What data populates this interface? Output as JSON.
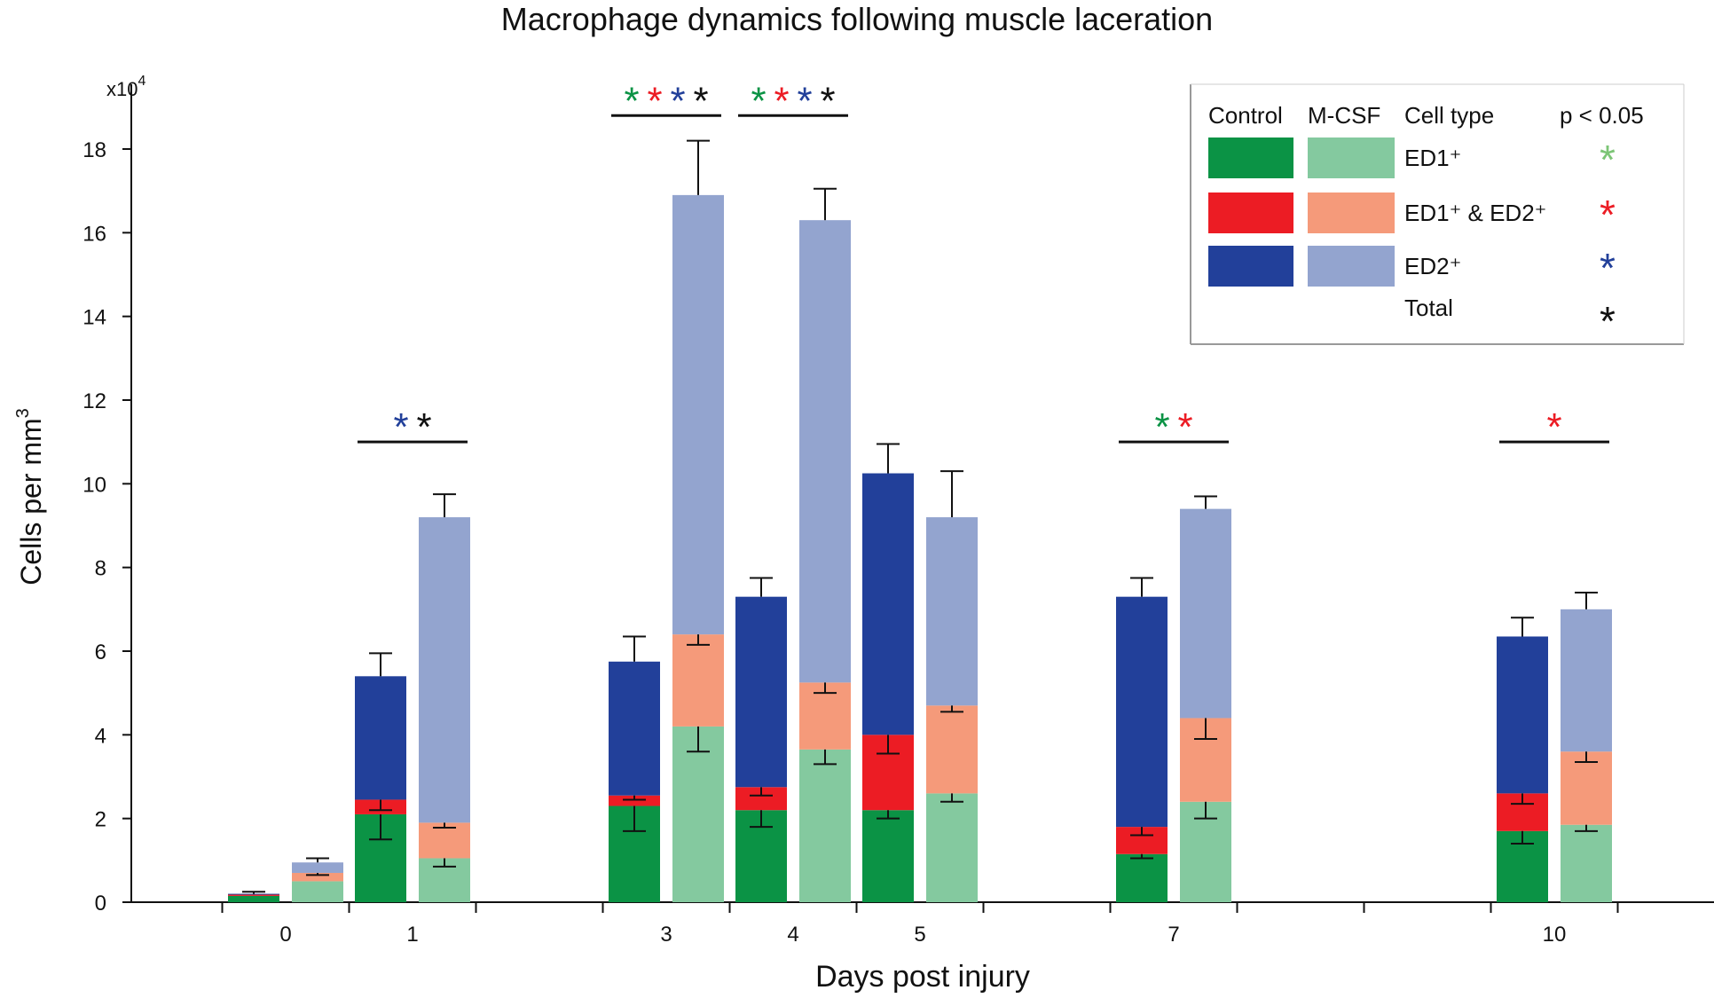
{
  "chart_data": {
    "type": "bar",
    "title": "Macrophage dynamics following muscle laceration",
    "xlabel": "Days post injury",
    "ylabel": "Cells per mm",
    "ylabel_superscript": "3",
    "y_multiplier": "x10",
    "y_multiplier_exp": "4",
    "ylim": [
      0,
      19
    ],
    "yticks": [
      "0",
      "2",
      "4",
      "6",
      "8",
      "10",
      "12",
      "14",
      "16",
      "18"
    ],
    "days": [
      0,
      1,
      3,
      4,
      5,
      7,
      10
    ],
    "x_tick_labels": [
      "0",
      "1",
      "3",
      "4",
      "5",
      "7",
      "10"
    ],
    "groups": [
      "Control",
      "M-CSF"
    ],
    "series": [
      {
        "name": "ED1⁺",
        "key": "ed1"
      },
      {
        "name": "ED1⁺ & ED2⁺",
        "key": "ed12"
      },
      {
        "name": "ED2⁺",
        "key": "ed2"
      }
    ],
    "bars": [
      {
        "day": 0,
        "group": "Control",
        "ed1": 0.15,
        "ed12": 0.03,
        "ed2": 0.02,
        "ed1_err": 0,
        "ed12_err": 0,
        "total_err": 0.05
      },
      {
        "day": 0,
        "group": "M-CSF",
        "ed1": 0.5,
        "ed12": 0.2,
        "ed2": 0.25,
        "ed1_err": 0,
        "ed12_err": 0.05,
        "total_err": 0.1
      },
      {
        "day": 1,
        "group": "Control",
        "ed1": 2.1,
        "ed12": 0.35,
        "ed2": 2.95,
        "ed1_err": 0.6,
        "ed12_err": 0.25,
        "total_err": 0.55
      },
      {
        "day": 1,
        "group": "M-CSF",
        "ed1": 1.05,
        "ed12": 0.85,
        "ed2": 7.3,
        "ed1_err": 0.2,
        "ed12_err": 0.12,
        "total_err": 0.55
      },
      {
        "day": 3,
        "group": "Control",
        "ed1": 2.3,
        "ed12": 0.25,
        "ed2": 3.2,
        "ed1_err": 0.6,
        "ed12_err": 0.1,
        "total_err": 0.6
      },
      {
        "day": 3,
        "group": "M-CSF",
        "ed1": 4.2,
        "ed12": 2.2,
        "ed2": 10.5,
        "ed1_err": 0.6,
        "ed12_err": 0.25,
        "total_err": 1.3
      },
      {
        "day": 4,
        "group": "Control",
        "ed1": 2.2,
        "ed12": 0.55,
        "ed2": 4.55,
        "ed1_err": 0.4,
        "ed12_err": 0.2,
        "total_err": 0.45
      },
      {
        "day": 4,
        "group": "M-CSF",
        "ed1": 3.65,
        "ed12": 1.6,
        "ed2": 11.05,
        "ed1_err": 0.35,
        "ed12_err": 0.25,
        "total_err": 0.75
      },
      {
        "day": 5,
        "group": "Control",
        "ed1": 2.2,
        "ed12": 1.8,
        "ed2": 6.25,
        "ed1_err": 0.2,
        "ed12_err": 0.45,
        "total_err": 0.7
      },
      {
        "day": 5,
        "group": "M-CSF",
        "ed1": 2.6,
        "ed12": 2.1,
        "ed2": 4.5,
        "ed1_err": 0.2,
        "ed12_err": 0.15,
        "total_err": 1.1
      },
      {
        "day": 7,
        "group": "Control",
        "ed1": 1.15,
        "ed12": 0.65,
        "ed2": 5.5,
        "ed1_err": 0.1,
        "ed12_err": 0.2,
        "total_err": 0.45
      },
      {
        "day": 7,
        "group": "M-CSF",
        "ed1": 2.4,
        "ed12": 2.0,
        "ed2": 5.0,
        "ed1_err": 0.4,
        "ed12_err": 0.5,
        "total_err": 0.3
      },
      {
        "day": 10,
        "group": "Control",
        "ed1": 1.7,
        "ed12": 0.9,
        "ed2": 3.75,
        "ed1_err": 0.3,
        "ed12_err": 0.25,
        "total_err": 0.45
      },
      {
        "day": 10,
        "group": "M-CSF",
        "ed1": 1.85,
        "ed12": 1.75,
        "ed2": 3.4,
        "ed1_err": 0.15,
        "ed12_err": 0.25,
        "total_err": 0.4
      }
    ],
    "significance": [
      {
        "day": 1,
        "markers": [
          "ED2",
          "Total"
        ],
        "level": 11.0
      },
      {
        "day": 3,
        "markers": [
          "ED1",
          "ED1&ED2",
          "ED2",
          "Total"
        ],
        "level": 18.8
      },
      {
        "day": 4,
        "markers": [
          "ED1",
          "ED1&ED2",
          "ED2",
          "Total"
        ],
        "level": 18.8
      },
      {
        "day": 7,
        "markers": [
          "ED1",
          "ED1&ED2"
        ],
        "level": 11.0
      },
      {
        "day": 10,
        "markers": [
          "ED1&ED2"
        ],
        "level": 11.0
      }
    ],
    "legend": {
      "placement": "top-right",
      "headers": [
        "Control",
        "M-CSF",
        "Cell type",
        "p < 0.05"
      ],
      "rows": [
        {
          "label": "ED1⁺",
          "key": "ed1",
          "star_key": "ED1"
        },
        {
          "label": "ED1⁺ & ED2⁺",
          "key": "ed12",
          "star_key": "ED1&ED2"
        },
        {
          "label": "ED2⁺",
          "key": "ed2",
          "star_key": "ED2"
        },
        {
          "label": "Total",
          "key": "total",
          "star_key": "Total"
        }
      ]
    },
    "star_glyph": "*",
    "colors": {
      "control": {
        "ed1": "#0b9345",
        "ed12": "#ec1c24",
        "ed2": "#22409a"
      },
      "mcsf": {
        "ed1": "#84c99f",
        "ed12": "#f59a7a",
        "ed2": "#93a4cf"
      },
      "stars": {
        "ED1": "#0b9345",
        "ED1&ED2": "#ec1c24",
        "ED2": "#22409a",
        "Total": "#111111"
      },
      "legend_stars": {
        "ED1": "#7cc576",
        "ED1&ED2": "#ec1c24",
        "ED2": "#22409a",
        "Total": "#111111"
      }
    }
  }
}
